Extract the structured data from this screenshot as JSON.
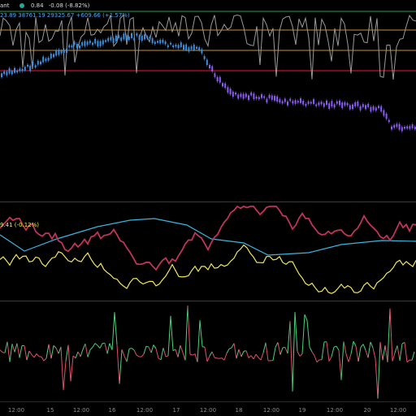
{
  "colors": {
    "background": "#000000",
    "candle_blue": "#3d8fe0",
    "candle_purple": "#8b5cf6",
    "oscillator_gray": "#9a9a9a",
    "level_green": "#2e9b4b",
    "level_orange": "#c8902f",
    "level_red": "#c8102e",
    "line_cyan": "#38b6e0",
    "line_crimson": "#c0335a",
    "line_yellow": "#f0e85a",
    "hist_green": "#4bd07a",
    "hist_red": "#e0506a"
  },
  "main_legend": {
    "name_fragment": "ant",
    "dot_icon": "dot-icon",
    "value": "0.84",
    "change": "-0.08 (-8.82%)",
    "ohlc_fragment": "23.89 38761.19 29325.67 +609.66 (+1.57%)"
  },
  "mid_legend": {
    "value_fragment": "9.41 (-0.12%)"
  },
  "x_axis": {
    "labels": [
      "12:00",
      "15",
      "12:00",
      "16",
      "12:00",
      "17",
      "12:00",
      "18",
      "12:00",
      "19",
      "12:00",
      "20",
      "12:00"
    ]
  }
}
